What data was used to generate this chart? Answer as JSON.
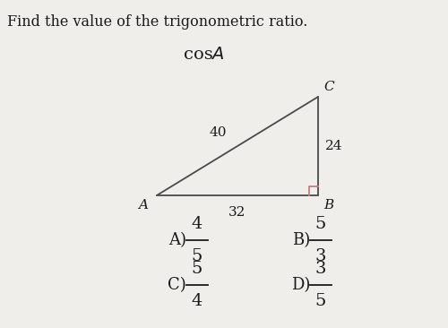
{
  "title": "Find the value of the trigonometric ratio.",
  "expression_cos": "cos ",
  "expression_A": "A",
  "background_color": "#f0eeeb",
  "labels": {
    "A": "A",
    "B": "B",
    "C": "C"
  },
  "side_labels": {
    "AB": "32",
    "BC": "24",
    "AC": "40"
  },
  "choices": {
    "A": {
      "num": "4",
      "den": "5"
    },
    "B": {
      "num": "5",
      "den": "3"
    },
    "C": {
      "num": "5",
      "den": "4"
    },
    "D": {
      "num": "3",
      "den": "5"
    }
  },
  "text_color": "#1a1a1a",
  "line_color": "#4a4a4a",
  "right_angle_color": "#c08080",
  "title_fontsize": 11.5,
  "label_fontsize": 11,
  "side_label_fontsize": 11,
  "choice_letter_fontsize": 13,
  "choice_num_fontsize": 14,
  "cos_fontsize": 14
}
